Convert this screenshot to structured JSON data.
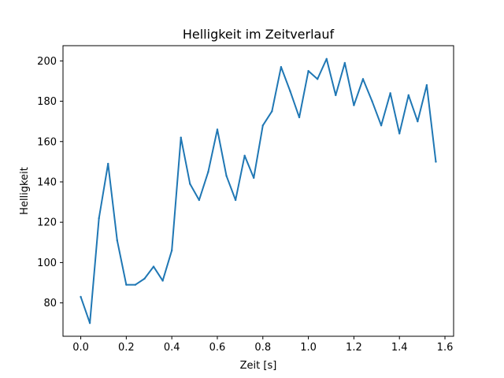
{
  "chart_data": {
    "type": "line",
    "title": "Helligkeit im Zeitverlauf",
    "xlabel": "Zeit [s]",
    "ylabel": "Helligkeit",
    "xlim": [
      -0.078,
      1.638
    ],
    "ylim": [
      63.45,
      207.55
    ],
    "xticks": [
      0.0,
      0.2,
      0.4,
      0.6,
      0.8,
      1.0,
      1.2,
      1.4,
      1.6
    ],
    "xtick_labels": [
      "0.0",
      "0.2",
      "0.4",
      "0.6",
      "0.8",
      "1.0",
      "1.2",
      "1.4",
      "1.6"
    ],
    "yticks": [
      80,
      100,
      120,
      140,
      160,
      180,
      200
    ],
    "ytick_labels": [
      "80",
      "100",
      "120",
      "140",
      "160",
      "180",
      "200"
    ],
    "grid": false,
    "legend": "none",
    "line_color": "#1f77b4",
    "series": [
      {
        "x": [
          0.0,
          0.04,
          0.08,
          0.12,
          0.16,
          0.2,
          0.24,
          0.28,
          0.32,
          0.36,
          0.4,
          0.44,
          0.48,
          0.52,
          0.56,
          0.6,
          0.64,
          0.68,
          0.72,
          0.76,
          0.8,
          0.84,
          0.88,
          0.92,
          0.96,
          1.0,
          1.04,
          1.08,
          1.12,
          1.16,
          1.2,
          1.24,
          1.28,
          1.32,
          1.36,
          1.4,
          1.44,
          1.48,
          1.52,
          1.56
        ],
        "y": [
          83,
          70,
          122,
          149,
          111,
          89,
          89,
          92,
          98,
          91,
          106,
          162,
          139,
          131,
          145,
          166,
          143,
          131,
          153,
          142,
          168,
          175,
          197,
          185,
          172,
          195,
          191,
          201,
          183,
          199,
          178,
          191,
          180,
          168,
          184,
          164,
          183,
          170,
          188,
          150
        ]
      }
    ]
  }
}
